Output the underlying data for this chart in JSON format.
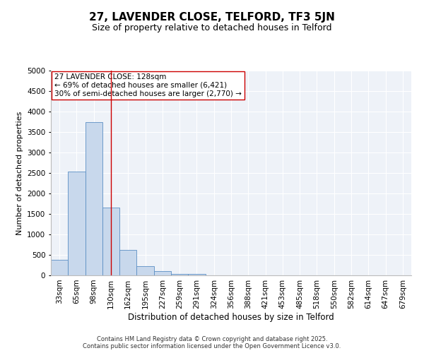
{
  "title1": "27, LAVENDER CLOSE, TELFORD, TF3 5JN",
  "title2": "Size of property relative to detached houses in Telford",
  "xlabel": "Distribution of detached houses by size in Telford",
  "ylabel": "Number of detached properties",
  "bar_labels": [
    "33sqm",
    "65sqm",
    "98sqm",
    "130sqm",
    "162sqm",
    "195sqm",
    "227sqm",
    "259sqm",
    "291sqm",
    "324sqm",
    "356sqm",
    "388sqm",
    "421sqm",
    "453sqm",
    "485sqm",
    "518sqm",
    "550sqm",
    "582sqm",
    "614sqm",
    "647sqm",
    "679sqm"
  ],
  "bar_values": [
    380,
    2530,
    3750,
    1650,
    620,
    230,
    100,
    40,
    40,
    0,
    0,
    0,
    0,
    0,
    0,
    0,
    0,
    0,
    0,
    0,
    0
  ],
  "bar_color": "#c8d8ec",
  "bar_edge_color": "#5b8ec4",
  "vline_x": 3.0,
  "vline_color": "#cc0000",
  "annotation_line1": "27 LAVENDER CLOSE: 128sqm",
  "annotation_line2": "← 69% of detached houses are smaller (6,421)",
  "annotation_line3": "30% of semi-detached houses are larger (2,770) →",
  "annotation_box_color": "white",
  "annotation_box_edge": "#cc0000",
  "ylim": [
    0,
    5000
  ],
  "yticks": [
    0,
    500,
    1000,
    1500,
    2000,
    2500,
    3000,
    3500,
    4000,
    4500,
    5000
  ],
  "bg_color": "#eef2f8",
  "footer": "Contains HM Land Registry data © Crown copyright and database right 2025.\nContains public sector information licensed under the Open Government Licence v3.0.",
  "title1_fontsize": 11,
  "title2_fontsize": 9,
  "xlabel_fontsize": 8.5,
  "ylabel_fontsize": 8,
  "tick_fontsize": 7.5,
  "annotation_fontsize": 7.5,
  "footer_fontsize": 6
}
